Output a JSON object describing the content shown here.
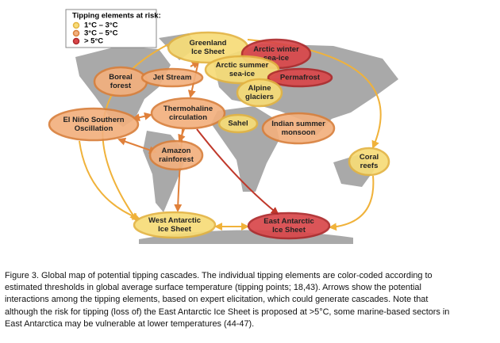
{
  "legend": {
    "title": "Tipping elements at risk:",
    "items": [
      {
        "label": "1°C – 3°C",
        "fill": "#f7dc78",
        "stroke": "#e3b443"
      },
      {
        "label": "3°C – 5°C",
        "fill": "#f2b07e",
        "stroke": "#d9803c"
      },
      {
        "label": "> 5°C",
        "fill": "#d9474a",
        "stroke": "#ad2a2c"
      }
    ]
  },
  "nodes": [
    {
      "lines": [
        "Greenland",
        "Ice Sheet"
      ],
      "risk": 0
    },
    {
      "lines": [
        "Arctic winter",
        "sea-ice"
      ],
      "risk": 2
    },
    {
      "lines": [
        "Arctic summer",
        "sea-ice"
      ],
      "risk": 0
    },
    {
      "lines": [
        "Boreal",
        "forest"
      ],
      "risk": 1
    },
    {
      "lines": [
        "Jet Stream"
      ],
      "risk": 1
    },
    {
      "lines": [
        "Permafrost"
      ],
      "risk": 2
    },
    {
      "lines": [
        "Alpine",
        "glaciers"
      ],
      "risk": 0
    },
    {
      "lines": [
        "El Niño Southern",
        "Oscillation"
      ],
      "risk": 1
    },
    {
      "lines": [
        "Thermohaline",
        "circulation"
      ],
      "risk": 1
    },
    {
      "lines": [
        "Sahel"
      ],
      "risk": 0
    },
    {
      "lines": [
        "Indian summer",
        "monsoon"
      ],
      "risk": 1
    },
    {
      "lines": [
        "Amazon",
        "rainforest"
      ],
      "risk": 1
    },
    {
      "lines": [
        "Coral",
        "reefs"
      ],
      "risk": 0
    },
    {
      "lines": [
        "West Antarctic",
        "Ice Sheet"
      ],
      "risk": 0
    },
    {
      "lines": [
        "East Antarctic",
        "Ice Sheet"
      ],
      "risk": 2
    }
  ],
  "caption": [
    "Figure 3. Global map of potential tipping cascades. The individual tipping elements are color-coded according to",
    "estimated thresholds in global average surface temperature (tipping points; 18,43).  Arrows show the potential",
    "interactions among the tipping elements, based on expert elicitation, which could generate cascades. Note that",
    "although the risk for tipping (loss of) the East Antarctic Ice Sheet is proposed at >5°C, some marine-based sectors in",
    "East Antarctica may be vulnerable at lower temperatures (44-47)."
  ]
}
